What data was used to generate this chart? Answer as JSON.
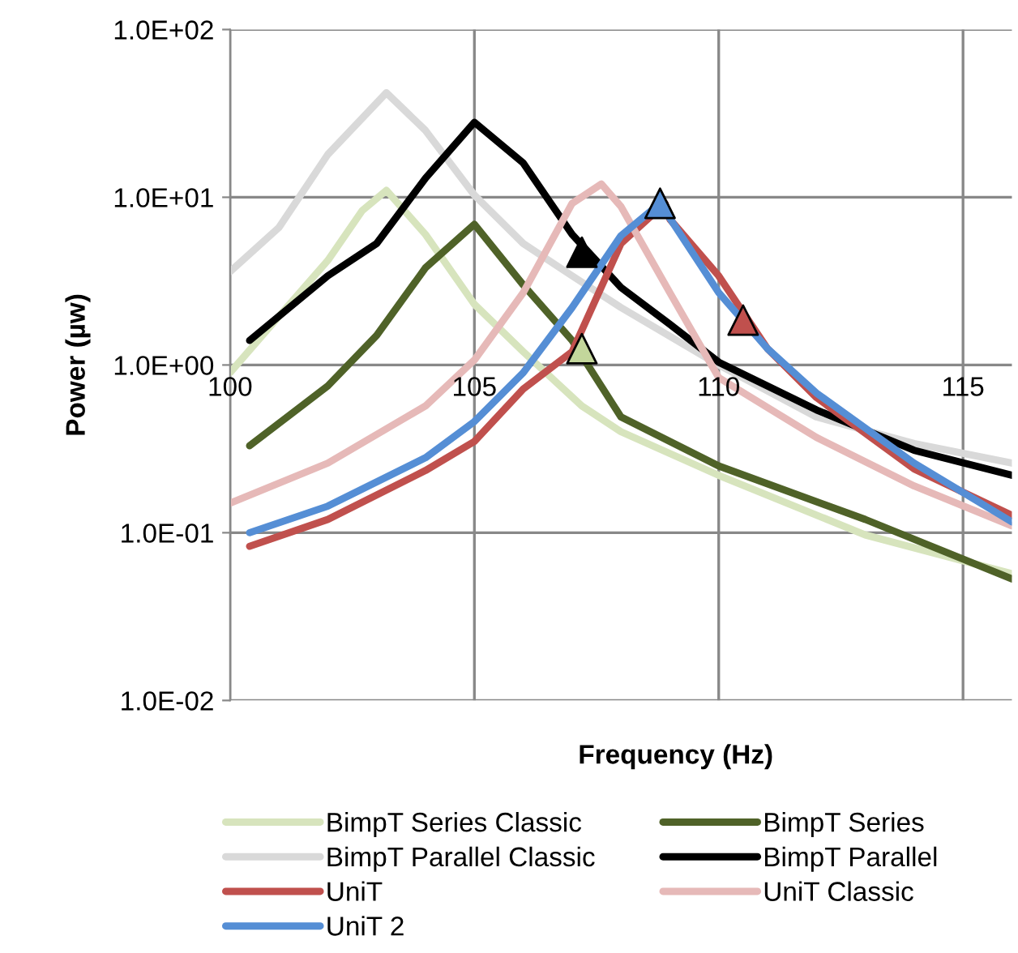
{
  "chart_data": {
    "type": "line",
    "xlabel": "Frequency (Hz)",
    "ylabel": "Power (µw)",
    "log": "y",
    "xlim": [
      100,
      116
    ],
    "xticks": [
      100,
      105,
      110,
      115
    ],
    "ylim": [
      0.01,
      100
    ],
    "yticks": [
      {
        "value": 0.01,
        "label": "1.0E-02"
      },
      {
        "value": 0.1,
        "label": "1.0E-01"
      },
      {
        "value": 1,
        "label": "1.0E+00"
      },
      {
        "value": 10,
        "label": "1.0E+01"
      },
      {
        "value": 100,
        "label": "1.0E+02"
      }
    ],
    "grid": true,
    "legend": "bottom",
    "marker": "none",
    "line_style": "solid",
    "series": [
      {
        "name": "BimpT Series Classic",
        "color": "#d7e4bd",
        "x": [
          100,
          101,
          102,
          102.7,
          103.2,
          104,
          105,
          106,
          107.2,
          108,
          110,
          113,
          116
        ],
        "values": [
          0.9,
          1.95,
          4.2,
          8.3,
          11,
          6,
          2.3,
          1.2,
          0.57,
          0.4,
          0.22,
          0.097,
          0.057
        ]
      },
      {
        "name": "BimpT Series",
        "color": "#4f6228",
        "x": [
          100.4,
          102,
          103,
          104,
          105,
          106,
          107,
          108,
          110,
          113,
          116
        ],
        "values": [
          0.33,
          0.75,
          1.5,
          3.8,
          6.9,
          3.0,
          1.4,
          0.49,
          0.25,
          0.12,
          0.053
        ]
      },
      {
        "name": "BimpT Parallel Classic",
        "color": "#d9d9d9",
        "x": [
          100,
          101,
          102,
          103.2,
          104,
          105,
          106,
          107,
          108,
          110,
          112,
          114,
          116
        ],
        "values": [
          3.6,
          6.6,
          18,
          42,
          25,
          10.3,
          5.3,
          3.4,
          2.2,
          1.0,
          0.49,
          0.34,
          0.26
        ]
      },
      {
        "name": "BimpT Parallel",
        "color": "#000000",
        "x": [
          100.4,
          102,
          103,
          104,
          105,
          106,
          107,
          108,
          109,
          110,
          112,
          114,
          116
        ],
        "values": [
          1.4,
          3.4,
          5.3,
          13,
          28,
          16,
          6,
          2.9,
          1.75,
          1.04,
          0.54,
          0.31,
          0.22
        ]
      },
      {
        "name": "UniT",
        "color": "#c0504d",
        "x": [
          100.4,
          102,
          104,
          105,
          106,
          107,
          108,
          108.9,
          109,
          110,
          111,
          112,
          114,
          116
        ],
        "values": [
          0.083,
          0.12,
          0.235,
          0.35,
          0.72,
          1.2,
          5.3,
          9.2,
          7.4,
          3.4,
          1.25,
          0.64,
          0.24,
          0.127
        ]
      },
      {
        "name": "UniT Classic",
        "color": "#e6b9b8",
        "x": [
          100,
          102,
          104,
          105,
          106,
          107,
          107.6,
          108,
          109,
          110,
          112,
          114,
          116
        ],
        "values": [
          0.15,
          0.26,
          0.57,
          1.07,
          2.7,
          9.2,
          12,
          8.8,
          2.7,
          0.84,
          0.37,
          0.19,
          0.11
        ]
      },
      {
        "name": "UniT 2",
        "color": "#558ed5",
        "x": [
          100.4,
          102,
          104,
          105,
          106,
          107,
          108,
          108.8,
          110,
          111,
          112,
          114,
          116
        ],
        "values": [
          0.1,
          0.144,
          0.28,
          0.46,
          0.9,
          2.2,
          5.9,
          9.2,
          2.7,
          1.25,
          0.68,
          0.26,
          0.116
        ]
      },
      {
        "type": "scatter",
        "marker": "triangle",
        "color": "#000000",
        "x": [
          107.2
        ],
        "values": [
          4.7
        ]
      },
      {
        "type": "scatter",
        "marker": "triangle",
        "color": "#c3d69b",
        "x": [
          107.2
        ],
        "values": [
          1.25
        ]
      },
      {
        "type": "scatter",
        "marker": "triangle",
        "color": "#558ed5",
        "x": [
          108.8
        ],
        "values": [
          9.2
        ]
      },
      {
        "type": "scatter",
        "marker": "triangle",
        "color": "#c0504d",
        "x": [
          110.5
        ],
        "values": [
          1.85
        ]
      }
    ]
  }
}
